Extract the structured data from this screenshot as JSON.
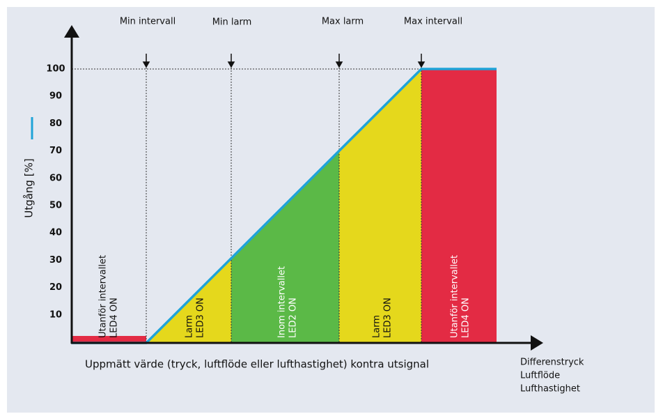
{
  "y_axis": {
    "label": "Utgång [%]",
    "ticks": [
      10,
      20,
      30,
      40,
      50,
      60,
      70,
      80,
      90,
      100
    ]
  },
  "markers": [
    "Min intervall",
    "Min larm",
    "Max larm",
    "Max intervall"
  ],
  "regions": [
    {
      "lines": [
        "Utanför intervallet",
        "LED4 ON"
      ]
    },
    {
      "lines": [
        "Larm",
        "LED3 ON"
      ]
    },
    {
      "lines": [
        "Inom intervallet",
        "LED2 ON"
      ]
    },
    {
      "lines": [
        "Larm",
        "LED3 ON"
      ]
    },
    {
      "lines": [
        "Utanför intervallet",
        "LED4 ON"
      ]
    }
  ],
  "x_axis": {
    "caption": "Uppmätt värde (tryck, luftflöde eller lufthastighet) kontra utsignal",
    "labels": [
      "Differenstryck",
      "Luftflöde",
      "Lufthastighet"
    ]
  }
}
